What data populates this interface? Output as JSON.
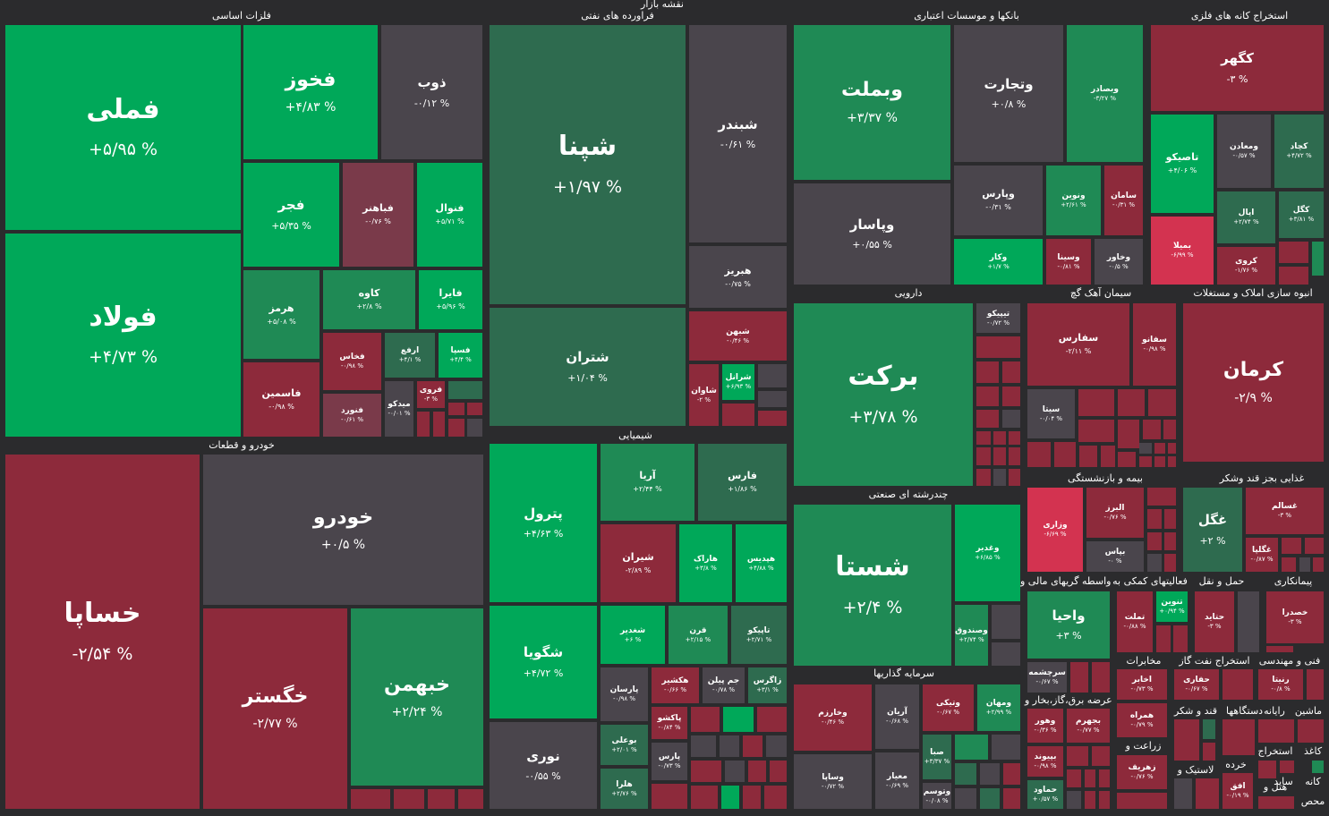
{
  "title": "نقشه بازار",
  "colors": {
    "positive": "#00a859",
    "negative": "#8d2a3b",
    "neutral": "#4a454c",
    "background": "#2b2b2d"
  },
  "sectors": {
    "metals": "فلزات اساسی",
    "oil": "فراورده های نفتی",
    "banks": "بانکها و موسسات اعتباری",
    "mining": "استخراج کانه های فلزی",
    "auto": "خودرو و قطعات",
    "chemical": "شیمیایی",
    "pharma": "دارویی",
    "cement": "سیمان آهک گچ",
    "realestate": "انبوه سازی املاک و مستغلات",
    "multi": "چندرشته ای صنعتی",
    "investment": "سرمایه گذاریها",
    "insurance": "بیمه و بازنشستگی",
    "food": "غذایی بجز قند وشکر",
    "financial": "فعالیتهای کمکی به",
    "leasing": "واسطه گریهای مالی و",
    "transport": "حمل و نقل",
    "contracting": "پیمانکاری",
    "comms": "مخابرات",
    "gas": "استخراج نفت گاز",
    "engineering": "فنی و مهندسی",
    "power": "عرضه برق،گاز،بخار و",
    "sugar": "قند و شکر",
    "handheld": "دستگاهها",
    "computer": "رایانه",
    "machinery": "ماشین",
    "farming": "زراعت و",
    "retail": "خرده",
    "rubber": "لاستیک و",
    "otherMining": "استخراج",
    "paper": "کاغذ",
    "metalProducts": "کانه",
    "tools": "ساید",
    "hotel": "هتل و",
    "other": "محص"
  },
  "tiles": {
    "femeli": {
      "name": "فملی",
      "value": "+۵/۹۵ %"
    },
    "foolad": {
      "name": "فولاد",
      "value": "+۴/۷۳ %"
    },
    "fakhooz": {
      "name": "فخوز",
      "value": "+۴/۸۳ %"
    },
    "zob": {
      "name": "ذوب",
      "value": "-۰/۱۲ %"
    },
    "fajr": {
      "name": "فجر",
      "value": "+۵/۳۵ %"
    },
    "fabahonar": {
      "name": "فباهنر",
      "value": "-۰/۷۶ %"
    },
    "foulav": {
      "name": "فنوال",
      "value": "+۵/۷۱ %"
    },
    "hormoz": {
      "name": "هرمز",
      "value": "+۵/۰۸ %"
    },
    "kaveh": {
      "name": "کاوه",
      "value": "+۲/۸ %"
    },
    "faira": {
      "name": "فایرا",
      "value": "+۵/۹۶ %"
    },
    "faseemin": {
      "name": "فاسمین",
      "value": "-۰/۹۸ %"
    },
    "fekhas": {
      "name": "فخاس",
      "value": "-۰/۹۸ %"
    },
    "arfa": {
      "name": "ارفع",
      "value": "+۴/۱ %"
    },
    "fasapa": {
      "name": "فسپا",
      "value": "+۴/۴ %"
    },
    "fanoorad": {
      "name": "فنورد",
      "value": "-۰/۶۱ %"
    },
    "meydeko": {
      "name": "میدکو",
      "value": "-۰/۰۱ %"
    },
    "forovi": {
      "name": "فروی",
      "value": "-۳ %"
    },
    "shepna": {
      "name": "شپنا",
      "value": "+۱/۹۷ %"
    },
    "shebandar": {
      "name": "شبندر",
      "value": "-۰/۶۱ %"
    },
    "shetran": {
      "name": "شتران",
      "value": "+۱/۰۴ %"
    },
    "hebriz": {
      "name": "هبریز",
      "value": "-۰/۷۵ %"
    },
    "shebhan": {
      "name": "شبهن",
      "value": "-۰/۴۶ %"
    },
    "shavan": {
      "name": "شاوان",
      "value": "-۲ %"
    },
    "shararel": {
      "name": "شرانل",
      "value": "+۶/۹۳ %"
    },
    "vebmelat": {
      "name": "وبملت",
      "value": "+۳/۳۷ %"
    },
    "vetejarat": {
      "name": "وتجارت",
      "value": "+۰/۸ %"
    },
    "vebsader": {
      "name": "وبصادر",
      "value": "-۳/۲۷ %"
    },
    "vepasar": {
      "name": "وپاسار",
      "value": "+۰/۵۵ %"
    },
    "vepars": {
      "name": "وپارس",
      "value": "-۰/۳۱ %"
    },
    "vanovin": {
      "name": "ونوین",
      "value": "+۲/۶۱ %"
    },
    "saman": {
      "name": "سامان",
      "value": "-۰/۳۱ %"
    },
    "vekar": {
      "name": "وکار",
      "value": "+۱/۷ %"
    },
    "vesina": {
      "name": "وسینا",
      "value": "-۰/۸۱ %"
    },
    "vakhavar": {
      "name": "وخاور",
      "value": "-۰/۵ %"
    },
    "kegohar": {
      "name": "کگهر",
      "value": "-۳ %"
    },
    "tasisko": {
      "name": "تاصیکو",
      "value": "+۴/۰۶ %"
    },
    "vemadan": {
      "name": "ومعادن",
      "value": "-۰/۵۷ %"
    },
    "kechad": {
      "name": "کچاد",
      "value": "+۴/۷۲ %"
    },
    "apal": {
      "name": "اپال",
      "value": "+۲/۷۴ %"
    },
    "kegol": {
      "name": "کگل",
      "value": "+۳/۸۱ %"
    },
    "bemila": {
      "name": "بمیلا",
      "value": "-۶/۹۹ %"
    },
    "keravi": {
      "name": "کروی",
      "value": "-۱/۷۶ %"
    },
    "khesapa": {
      "name": "خساپا",
      "value": "-۲/۵۴ %"
    },
    "khodro": {
      "name": "خودرو",
      "value": "+۰/۵ %"
    },
    "khegostar": {
      "name": "خگستر",
      "value": "-۲/۷۷ %"
    },
    "khebahman": {
      "name": "خبهمن",
      "value": "+۲/۲۴ %"
    },
    "petrol": {
      "name": "پترول",
      "value": "+۴/۶۳ %"
    },
    "arya": {
      "name": "آریا",
      "value": "+۲/۴۴ %"
    },
    "fars": {
      "name": "فارس",
      "value": "+۱/۸۶ %"
    },
    "shiran": {
      "name": "شیران",
      "value": "-۲/۸۹ %"
    },
    "harak": {
      "name": "هاراک",
      "value": "+۳/۸ %"
    },
    "hepedis": {
      "name": "هپدیس",
      "value": "+۴/۸۸ %"
    },
    "shegoya": {
      "name": "شگویا",
      "value": "+۴/۷۲ %"
    },
    "shegadir": {
      "name": "شغدیر",
      "value": "+۶ %"
    },
    "qoran": {
      "name": "قرن",
      "value": "+۲/۱۵ %"
    },
    "tapiko": {
      "name": "تاپیکو",
      "value": "+۲/۷۱ %"
    },
    "parsan": {
      "name": "پارسان",
      "value": "-۰/۹۸ %"
    },
    "hekshir": {
      "name": "هکشیر",
      "value": "-۰/۶۶ %"
    },
    "jampilan": {
      "name": "جم پیلن",
      "value": "-۰/۷۸ %"
    },
    "zagros": {
      "name": "زاگرس",
      "value": "+۳/۱ %"
    },
    "noori": {
      "name": "نوری",
      "value": "-۰/۵۵ %"
    },
    "boali": {
      "name": "بوعلی",
      "value": "+۲/۰۱ %"
    },
    "pakhsho": {
      "name": "پاکشو",
      "value": "-۰/۸۴ %"
    },
    "pars": {
      "name": "پارس",
      "value": "-۰/۷۳ %"
    },
    "helra": {
      "name": "هلرا",
      "value": "+۲/۷۶ %"
    },
    "barkat": {
      "name": "برکت",
      "value": "+۳/۷۸ %"
    },
    "tipiko": {
      "name": "تیپیکو",
      "value": "-۰/۷۲ %"
    },
    "sefares": {
      "name": "سفارس",
      "value": "-۲/۱۱ %"
    },
    "sefano": {
      "name": "سفانو",
      "value": "-۰/۹۸ %"
    },
    "sita": {
      "name": "سیتا",
      "value": "-۰/۰۴ %"
    },
    "kerman": {
      "name": "کرمان",
      "value": "-۲/۹ %"
    },
    "shasta": {
      "name": "شستا",
      "value": "+۲/۴ %"
    },
    "vaghadir": {
      "name": "وغدیر",
      "value": "+۶/۸۵ %"
    },
    "vesandooq": {
      "name": "وصندوق",
      "value": "+۲/۷۴ %"
    },
    "vakharazm": {
      "name": "وخارزم",
      "value": "-۰/۴۶ %"
    },
    "arian": {
      "name": "آریان",
      "value": "-۰/۶۸ %"
    },
    "vetika": {
      "name": "وتیکی",
      "value": "-۰/۶۷ %"
    },
    "vemehan": {
      "name": "ومهان",
      "value": "+۲/۹۹ %"
    },
    "sepa": {
      "name": "صبا",
      "value": "+۳/۳۷ %"
    },
    "vesapa": {
      "name": "وساپا",
      "value": "-۰/۷۲ %"
    },
    "miyar": {
      "name": "معیار",
      "value": "-۰/۶۹ %"
    },
    "vatosam": {
      "name": "وتوسم",
      "value": "-۰/۰۸ %"
    },
    "vazari": {
      "name": "وزاری",
      "value": "-۶/۶۹ %"
    },
    "valborz": {
      "name": "البرز",
      "value": "-۰/۷۶ %"
    },
    "bepas": {
      "name": "بپاس",
      "value": "-۰ %"
    },
    "ghegol": {
      "name": "غگل",
      "value": "+۲ %"
    },
    "ghesalem": {
      "name": "غسالم",
      "value": "-۳ %"
    },
    "ghegolpa": {
      "name": "غگلپا",
      "value": "-۰/۸۷ %"
    },
    "vahya": {
      "name": "واحیا",
      "value": "+۳ %"
    },
    "temelat": {
      "name": "تملت",
      "value": "-۰/۸۸ %"
    },
    "tenovin": {
      "name": "تنوین",
      "value": "+۰/۹۴ %"
    },
    "hetanid": {
      "name": "حتاید",
      "value": "-۳ %"
    },
    "khesdra": {
      "name": "خصدرا",
      "value": "-۳ %"
    },
    "sarchashme": {
      "name": "سرچشمه",
      "value": "-۰/۶۷ %"
    },
    "akhaber": {
      "name": "اخابر",
      "value": "-۰/۷۳ %"
    },
    "hefari": {
      "name": "حفاری",
      "value": "-۰/۶۷ %"
    },
    "renita": {
      "name": "رنیتا",
      "value": "-۰/۸ %"
    },
    "vehor": {
      "name": "وهور",
      "value": "-۰/۳۶ %"
    },
    "bejahrom": {
      "name": "بجهرم",
      "value": "-۰/۷۷ %"
    },
    "hamrah": {
      "name": "همراه",
      "value": "-۰/۷۹ %"
    },
    "bepivand": {
      "name": "بپیوند",
      "value": "-۰/۹۸ %"
    },
    "zeharif": {
      "name": "زهریف",
      "value": "-۰/۷۶ %"
    },
    "hamaved": {
      "name": "حماود",
      "value": "+۰/۵۷ %"
    },
    "ofogh": {
      "name": "افق",
      "value": "-۰/۱۹ %"
    }
  }
}
